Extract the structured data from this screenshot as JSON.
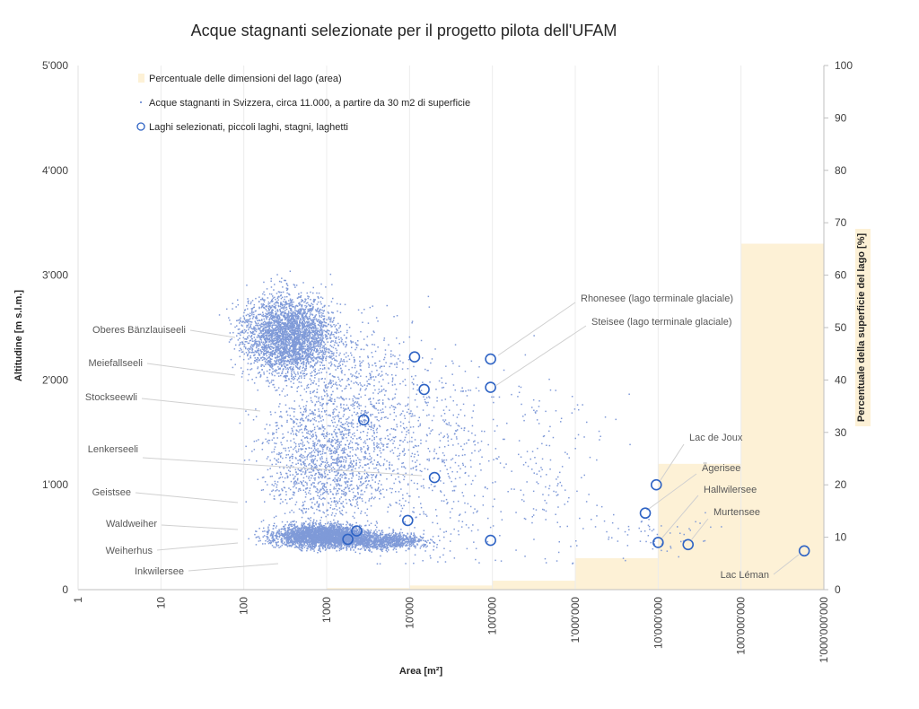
{
  "chart_data": {
    "type": "scatter",
    "title": "Acque stagnanti selezionate per il progetto pilota dell'UFAM",
    "xlabel": "Area [m²]",
    "ylabel": "Altitudine [m s.l.m.]",
    "y2label": "Percentuale della superficie del lago [%]",
    "x_scale": "log",
    "xlim": [
      1,
      1000000000
    ],
    "ylim": [
      0,
      5000
    ],
    "y2lim": [
      0,
      100
    ],
    "x_ticks": [
      "1",
      "10",
      "100",
      "1'000",
      "10'000",
      "100'000",
      "1'000'000",
      "10'000'000",
      "100'000'000",
      "1'000'000'000"
    ],
    "y_ticks": [
      "0",
      "1'000",
      "2'000",
      "3'000",
      "4'000",
      "5'000"
    ],
    "y2_ticks": [
      "0",
      "10",
      "20",
      "30",
      "40",
      "50",
      "60",
      "70",
      "80",
      "90",
      "100"
    ],
    "grid": "vertical gridlines at decades",
    "legend_placement": "top-left",
    "legend": [
      "Percentuale delle dimensioni del lago (area)",
      "Acque stagnanti in Svizzera, circa 11.000, a partire da 30 m2 di superficie",
      "Laghi selezionati, piccoli laghi, stagni, laghetti"
    ],
    "series": [
      {
        "name": "Percentuale delle dimensioni del lago (area)",
        "kind": "step-area",
        "axis": "secondary",
        "color": "#fdf1d6",
        "bins": [
          {
            "from": 1000,
            "to": 10000,
            "value": 0.3
          },
          {
            "from": 10000,
            "to": 100000,
            "value": 0.8
          },
          {
            "from": 100000,
            "to": 1000000,
            "value": 1.7
          },
          {
            "from": 1000000,
            "to": 10000000,
            "value": 6
          },
          {
            "from": 10000000,
            "to": 100000000,
            "value": 24
          },
          {
            "from": 100000000,
            "to": 1000000000,
            "value": 66
          }
        ]
      },
      {
        "name": "Acque stagnanti in Svizzera, circa 11.000, a partire da 30 m2 di superficie",
        "kind": "points",
        "color": "#7f9ad8",
        "approx_count": 11000
      },
      {
        "name": "Laghi selezionati, piccoli laghi, stagni, laghetti",
        "kind": "circles",
        "color": "#2e63c4",
        "points": [
          {
            "x": 1800,
            "y": 480
          },
          {
            "x": 2300,
            "y": 560
          },
          {
            "x": 2800,
            "y": 1620
          },
          {
            "x": 9500,
            "y": 660
          },
          {
            "x": 11500,
            "y": 2220
          },
          {
            "x": 15000,
            "y": 1910
          },
          {
            "x": 20000,
            "y": 1070
          },
          {
            "x": 95000,
            "y": 2200
          },
          {
            "x": 95000,
            "y": 1930
          },
          {
            "x": 95000,
            "y": 470
          },
          {
            "x": 7000000,
            "y": 730
          },
          {
            "x": 9500000,
            "y": 1000
          },
          {
            "x": 10000000,
            "y": 450
          },
          {
            "x": 23000000,
            "y": 430
          },
          {
            "x": 580000000,
            "y": 370
          }
        ]
      }
    ],
    "annotations": [
      "Oberes Bänzlauiseeli",
      "Meiefallseeli",
      "Stockseewli",
      "Lenkerseeli",
      "Geistsee",
      "Waldweiher",
      "Weiherhus",
      "Inkwilersee",
      "Rhonesee (lago terminale glaciale)",
      "Steisee (lago terminale glaciale)",
      "Lac de Joux",
      "Ägerisee",
      "Hallwilersee",
      "Murtensee",
      "Lac Léman"
    ]
  }
}
